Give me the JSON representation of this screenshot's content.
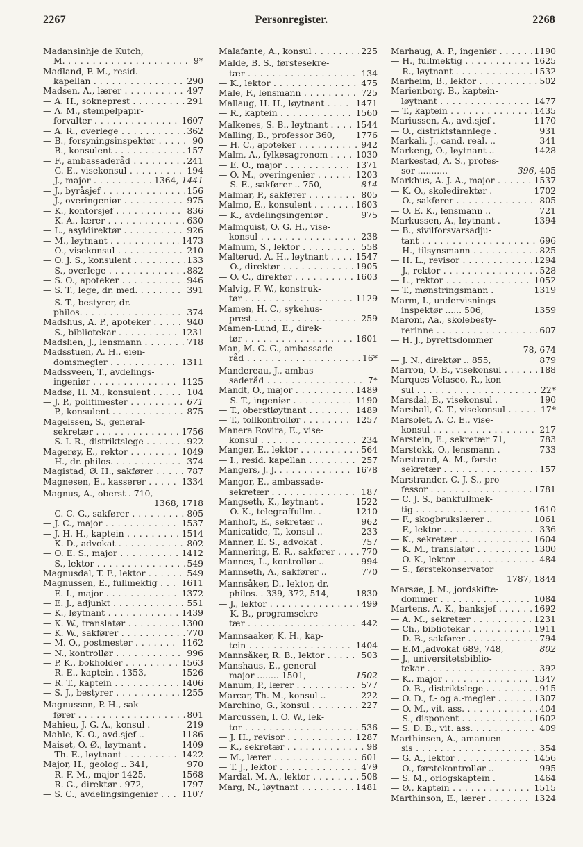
{
  "header": {
    "page_left": "2267",
    "title": "Personregister.",
    "page_right": "2268"
  },
  "columns": [
    {
      "lines": [
        [
          "Madansinhje de Kutch,",
          "",
          ""
        ],
        [
          "M.",
          "9*",
          "i"
        ],
        [
          "Madland, P. M., resid.",
          "",
          ""
        ],
        [
          "kapellan",
          "290",
          "i"
        ],
        [
          "Madsen, A., lærer",
          "497",
          ""
        ],
        [
          "— A. H., sokneprest",
          "291",
          ""
        ],
        [
          "— A. M., stempelpapir-",
          "",
          ""
        ],
        [
          "forvalter",
          "1607",
          "i"
        ],
        [
          "— A. R., overlege",
          "362",
          ""
        ],
        [
          "— B., forsyningsinspektør",
          "90",
          ""
        ],
        [
          "— B., konsulent",
          "157",
          ""
        ],
        [
          "— F., ambassaderåd",
          "241",
          ""
        ],
        [
          "— G. E., visekonsul",
          "194",
          ""
        ],
        [
          "— J., major",
          [
            [
              "1364, ",
              false
            ],
            [
              "1441",
              true
            ]
          ],
          ""
        ],
        [
          "— J., byråsjef",
          "156",
          ""
        ],
        [
          "— J., overingeniør",
          "975",
          ""
        ],
        [
          "— K., kontorsjef",
          "836",
          ""
        ],
        [
          "— K. A., lærer",
          "630",
          ""
        ],
        [
          "— L., asyldirektør",
          "926",
          ""
        ],
        [
          "— M., løytnant",
          "1473",
          ""
        ],
        [
          "— O., visekonsul",
          "210",
          ""
        ],
        [
          "— O. J. S., konsulent",
          "133",
          ""
        ],
        [
          "— S., overlege",
          "882",
          ""
        ],
        [
          "— S. O., apoteker",
          "946",
          ""
        ],
        [
          "— S. T., lege, dr. med.",
          "391",
          ""
        ],
        [
          "— S. T., bestyrer, dr.",
          "",
          "g"
        ],
        [
          "philos.",
          "374",
          "i"
        ],
        [
          "Madshus, A. P., apoteker",
          "940",
          ""
        ],
        [
          "— S., bibliotekar",
          "1231",
          ""
        ],
        [
          "Madslien, J., lensmann",
          "718",
          ""
        ],
        [
          "Madsstuen, A. H., eien-",
          "",
          ""
        ],
        [
          "domsmegler",
          "1311",
          "i"
        ],
        [
          "Madssveen, T., avdelings-",
          "",
          ""
        ],
        [
          "ingeniør",
          "1125",
          "i"
        ],
        [
          "Madsø, H. M., konsulent",
          "104",
          ""
        ],
        [
          "— J. P., politimester",
          [
            [
              "671",
              true
            ]
          ],
          ""
        ],
        [
          "— P., konsulent",
          "875",
          ""
        ],
        [
          "Magelssen, S., general-",
          "",
          ""
        ],
        [
          "sekretær",
          "1756",
          "i"
        ],
        [
          "— S. I. R., distriktslege",
          "922",
          ""
        ],
        [
          "Magerøy, E., rektor",
          "1049",
          ""
        ],
        [
          "— H., dr. philos.",
          "374",
          ""
        ],
        [
          "Magistad, Ø. H., sakfører",
          "787",
          ""
        ],
        [
          "Magnesen, E., kasserer",
          "1334",
          ""
        ],
        [
          "Magnus, A., oberst . 710,",
          "",
          "g"
        ],
        [
          "",
          "1368,  1718",
          "n"
        ],
        [
          "— C. C. G., sakfører",
          "805",
          ""
        ],
        [
          "— J. C., major",
          "1537",
          ""
        ],
        [
          "— J. H. H., kaptein",
          "1514",
          ""
        ],
        [
          "— K. D., advokat",
          "802",
          ""
        ],
        [
          "— O. E. S., major",
          "1412",
          ""
        ],
        [
          "— S., lektor",
          "549",
          ""
        ],
        [
          "Magnusdal, T. F., lektor",
          "549",
          ""
        ],
        [
          "Magnussen, E., fullmektig",
          "1611",
          ""
        ],
        [
          "— E. I., major",
          "1372",
          ""
        ],
        [
          "— E. J., adjunkt",
          "551",
          ""
        ],
        [
          "— K., løytnant",
          "1439",
          ""
        ],
        [
          "— K. W., translatør",
          "1300",
          ""
        ],
        [
          "— K. W., sakfører",
          "770",
          ""
        ],
        [
          "— M. O., postmester",
          "1162",
          ""
        ],
        [
          "— N., kontrollør",
          "996",
          ""
        ],
        [
          "— P. K., bokholder",
          "1563",
          ""
        ],
        [
          "— R. E., kaptein . 1353,",
          "1526",
          "n"
        ],
        [
          "— R. T., kaptein",
          "1406",
          ""
        ],
        [
          "— S. J., bestyrer",
          "1255",
          ""
        ],
        [
          "Magnusson, P. H., sak-",
          "",
          "g"
        ],
        [
          "fører",
          "801",
          "i"
        ],
        [
          "Mahieu, J. G. A., konsul .",
          "219",
          "n"
        ],
        [
          "Mahle, K. O., avd.sjef ..",
          "1186",
          "n"
        ],
        [
          "Maiset, O. Ø., løytnant .",
          "1409",
          "n"
        ],
        [
          "— Th. E., løytnant",
          "1422",
          ""
        ],
        [
          "Major, H., geolog .. 341,",
          "970",
          "n"
        ],
        [
          "— R. F. M., major 1425,",
          "1568",
          "n"
        ],
        [
          "— R. G., direktør . 972,",
          "1797",
          "n"
        ],
        [
          "— S. C., avdelingsingeniør",
          "1107",
          ""
        ]
      ]
    },
    {
      "lines": [
        [
          "Malafante, A., konsul",
          "225",
          ""
        ],
        [
          "Malde, B. S., førstesekre-",
          "",
          "g"
        ],
        [
          "tær",
          "134",
          "i"
        ],
        [
          "— K., lektor",
          "475",
          ""
        ],
        [
          "Male, F., lensmann",
          "725",
          ""
        ],
        [
          "Mallaug, H. H., løytnant",
          "1471",
          ""
        ],
        [
          "— R., kaptein",
          "1560",
          ""
        ],
        [
          "Malkenes, S. B., løytnant",
          "1544",
          "g"
        ],
        [
          "Malling, B., professor 360,",
          "1776",
          "n"
        ],
        [
          "— H. C., apoteker",
          "942",
          ""
        ],
        [
          "Malm, A., fylkesagronom",
          "1030",
          ""
        ],
        [
          "— E. O., major",
          "1371",
          ""
        ],
        [
          "— O. M., overingeniør",
          "1203",
          ""
        ],
        [
          "— S. E., sakfører .. 750,",
          [
            [
              "814",
              true
            ]
          ],
          "n"
        ],
        [
          "Malmar, P., sakfører",
          "805",
          ""
        ],
        [
          "Malmo, E., konsulent",
          "1603",
          ""
        ],
        [
          "— K., avdelingsingeniør .",
          "975",
          "n"
        ],
        [
          "Malmquist, O. G. H., vise-",
          "",
          "g"
        ],
        [
          "konsul",
          "238",
          "i"
        ],
        [
          "Malnum, S., lektor",
          "558",
          ""
        ],
        [
          "Malterud, A. H., løytnant",
          "1547",
          ""
        ],
        [
          "— O., direktør",
          "1905",
          ""
        ],
        [
          "— O. C., direktør",
          "1603",
          ""
        ],
        [
          "Malvig, F. W., konstruk-",
          "",
          "g"
        ],
        [
          "tør",
          "1129",
          "i"
        ],
        [
          "Mamen, H. C., sykehus-",
          "",
          ""
        ],
        [
          "prest",
          "259",
          "i"
        ],
        [
          "Mamen-Lund, E., direk-",
          "",
          ""
        ],
        [
          "tør",
          "1601",
          "i"
        ],
        [
          "Man, M. C. G., ambassade-",
          "",
          ""
        ],
        [
          "råd",
          "16*",
          "i"
        ],
        [
          "Mandereau, J., ambas-",
          "",
          "g"
        ],
        [
          "saderåd",
          "7*",
          "i"
        ],
        [
          "Mandt, O., major",
          "1489",
          ""
        ],
        [
          "— S. T., ingeniør",
          "1190",
          ""
        ],
        [
          "— T., oberstløytnant",
          "1489",
          ""
        ],
        [
          "— T., tollkontrollør",
          "1257",
          ""
        ],
        [
          "Manera Rovira, E., vise-",
          "",
          ""
        ],
        [
          "konsul",
          "234",
          "i"
        ],
        [
          "Manger, E., lektor",
          "564",
          ""
        ],
        [
          "— I., resid. kapellan",
          "257",
          ""
        ],
        [
          "Mangers, J. J.",
          "1678",
          ""
        ],
        [
          "Mangor, E., ambassade-",
          "",
          "g"
        ],
        [
          "sekretær",
          "187",
          "i"
        ],
        [
          "Mangseth, K., løytnant .",
          "1522",
          "n"
        ],
        [
          "— O. K., telegraffullm. .",
          "1210",
          "n"
        ],
        [
          "Manholt, E., sekretær ..",
          "962",
          "n"
        ],
        [
          "Manicatide, T., konsul ..",
          "233",
          "n"
        ],
        [
          "Manner, E. S., advokat .",
          "757",
          "n"
        ],
        [
          "Mannering, E. R., sakfører",
          "770",
          ""
        ],
        [
          "Mannes, L., kontrollør ..",
          "994",
          "n"
        ],
        [
          "Mannseth, A., sakfører ..",
          "770",
          "n"
        ],
        [
          "Mannsåker, D., lektor, dr.",
          "",
          "g"
        ],
        [
          "philos. . 339, 372, 514,",
          "1830",
          "in"
        ],
        [
          "— J., lektor",
          "499",
          ""
        ],
        [
          "— K. B., programsekre-",
          "",
          ""
        ],
        [
          "tær",
          "442",
          "i"
        ],
        [
          "Mannsaaker, K. H., kap-",
          "",
          "g"
        ],
        [
          "tein",
          "1404",
          "i"
        ],
        [
          "Mannsåker, R. B., lektor",
          "503",
          ""
        ],
        [
          "Manshaus, E., general-",
          "",
          ""
        ],
        [
          "major ........ 1501,",
          [
            [
              "1502",
              true
            ]
          ],
          "in"
        ],
        [
          "Manum, P., lærer",
          "577",
          ""
        ],
        [
          "Marcar, Th. M., konsul ..",
          "222",
          "n"
        ],
        [
          "Marchino, G., konsul",
          "227",
          ""
        ],
        [
          "Marcussen, I. O. W., lek-",
          "",
          "g"
        ],
        [
          "tor",
          "536",
          "i"
        ],
        [
          "— J. H., revisor",
          "1287",
          ""
        ],
        [
          "— K., sekretær",
          "98",
          ""
        ],
        [
          "— M., lærer",
          "601",
          ""
        ],
        [
          "— T. J., lektor",
          "479",
          ""
        ],
        [
          "Mardal, M. A., lektor",
          "508",
          ""
        ],
        [
          "Marg, N., løytnant",
          "1481",
          ""
        ]
      ]
    },
    {
      "lines": [
        [
          "Marhaug, A. P., ingeniør",
          "1190",
          ""
        ],
        [
          "— H., fullmektig",
          "1625",
          ""
        ],
        [
          "— R., løytnant",
          "1532",
          ""
        ],
        [
          "Marheim, B., lektor",
          "502",
          ""
        ],
        [
          "Marienborg, B., kaptein-",
          "",
          ""
        ],
        [
          "løytnant",
          "1477",
          "i"
        ],
        [
          "— T., kaptein",
          "1435",
          ""
        ],
        [
          "Mariussen, A., avd.sjef .",
          "1170",
          "n"
        ],
        [
          "— O., distriktstannlege .",
          "931",
          "n"
        ],
        [
          "Markali, J., cand. real. ..",
          "341",
          "n"
        ],
        [
          "Markeng, O., løytnant ..",
          "1428",
          "n"
        ],
        [
          "Markestad, A. S., profes-",
          "",
          ""
        ],
        [
          "sor ........... ",
          [
            [
              "396",
              true
            ],
            [
              ",  405",
              false
            ]
          ],
          "in"
        ],
        [
          "Markhus, A. J. A., major",
          "1537",
          ""
        ],
        [
          "— K. O., skoledirektør .",
          "1702",
          "n"
        ],
        [
          "— O., sakfører",
          "805",
          ""
        ],
        [
          "— O. E. K., lensmann ..",
          "721",
          "n"
        ],
        [
          "Markussen, A., løytnant .",
          "1394",
          "n"
        ],
        [
          "— B., sivilforsvarsadju-",
          "",
          ""
        ],
        [
          "tant",
          "696",
          "i"
        ],
        [
          "— H., tilsynsmann",
          "825",
          ""
        ],
        [
          "— H. L., revisor",
          "1294",
          ""
        ],
        [
          "— J., rektor",
          "528",
          ""
        ],
        [
          "— L., rektor",
          "1052",
          ""
        ],
        [
          "— T., mønstringsmann .",
          "1319",
          "n"
        ],
        [
          "Marm, I., undervisnings-",
          "",
          ""
        ],
        [
          "inspektør ...... 506,",
          "1359",
          "in"
        ],
        [
          "Maroni, Aa., skolebesty-",
          "",
          ""
        ],
        [
          "rerinne",
          "607",
          "i"
        ],
        [
          "— H. J., byrettsdommer",
          "",
          ""
        ],
        [
          "",
          "78,   674",
          "n"
        ],
        [
          "— J. N., direktør .. 855,",
          "879",
          "n"
        ],
        [
          "Marron, O. B., visekonsul",
          "188",
          ""
        ],
        [
          "Marques Velaseo, R., kon-",
          "",
          ""
        ],
        [
          "sul",
          "22*",
          "i"
        ],
        [
          "Marsdal, B., visekonsul .",
          "190",
          "n"
        ],
        [
          "Marshall, G. T., visekonsul",
          "17*",
          ""
        ],
        [
          "Marsolet, A. C. E., vise-",
          "",
          ""
        ],
        [
          "konsul",
          "217",
          "i"
        ],
        [
          "Marstein, E., sekretær 71,",
          "783",
          "n"
        ],
        [
          "Marstokk, O., lensmann .",
          "733",
          "n"
        ],
        [
          "Marstrand, A. M., første-",
          "",
          ""
        ],
        [
          "sekretær",
          "157",
          "i"
        ],
        [
          "Marstrander, C. J. S., pro-",
          "",
          ""
        ],
        [
          "fessor",
          "1781",
          "i"
        ],
        [
          "— C. J. S., bankfullmek-",
          "",
          ""
        ],
        [
          "tig",
          "1610",
          "i"
        ],
        [
          "— F., skogbrukslærer ..",
          "1061",
          "n"
        ],
        [
          "— F., lektor",
          "336",
          ""
        ],
        [
          "— K., sekretær",
          "1604",
          ""
        ],
        [
          "— K. M., translatør",
          "1300",
          ""
        ],
        [
          "— O. K., lektor",
          "484",
          ""
        ],
        [
          "— S., førstekonservator",
          "",
          ""
        ],
        [
          "",
          "1787,  1844",
          "n"
        ],
        [
          "Marsøe, J. M., jordskifte-",
          "",
          ""
        ],
        [
          "dommer",
          "1084",
          "i"
        ],
        [
          "Martens, A. K., banksjef",
          "1692",
          ""
        ],
        [
          "— A. M., sekretær",
          "1231",
          ""
        ],
        [
          "— Ch., bibliotekar",
          "1911",
          ""
        ],
        [
          "— D. B., sakfører",
          "794",
          ""
        ],
        [
          "— E.M.,advokat 689, 748,",
          [
            [
              "802",
              true
            ]
          ],
          "n"
        ],
        [
          "— J., universitetsbiblio-",
          "",
          ""
        ],
        [
          "tekar",
          "392",
          "i"
        ],
        [
          "— K., major",
          "1347",
          ""
        ],
        [
          "— O. B., distriktslege",
          "915",
          ""
        ],
        [
          "— O. D., f.- og a.-megler",
          "1307",
          ""
        ],
        [
          "— O. M., vit. ass.",
          "404",
          ""
        ],
        [
          "— S., disponent",
          "1602",
          ""
        ],
        [
          "— S. D. B., vit. ass.",
          "409",
          ""
        ],
        [
          "Marthinsen, A., amanuen-",
          "",
          ""
        ],
        [
          "sis",
          "354",
          "i"
        ],
        [
          "— G. A., lektor",
          "1456",
          ""
        ],
        [
          "— O., førstekontrollør ..",
          "995",
          "n"
        ],
        [
          "— S. M., orlogskaptein .",
          "1464",
          "n"
        ],
        [
          "— Ø., kaptein",
          "1515",
          ""
        ],
        [
          "Marthinson, E., lærer",
          "1324",
          ""
        ]
      ]
    }
  ]
}
